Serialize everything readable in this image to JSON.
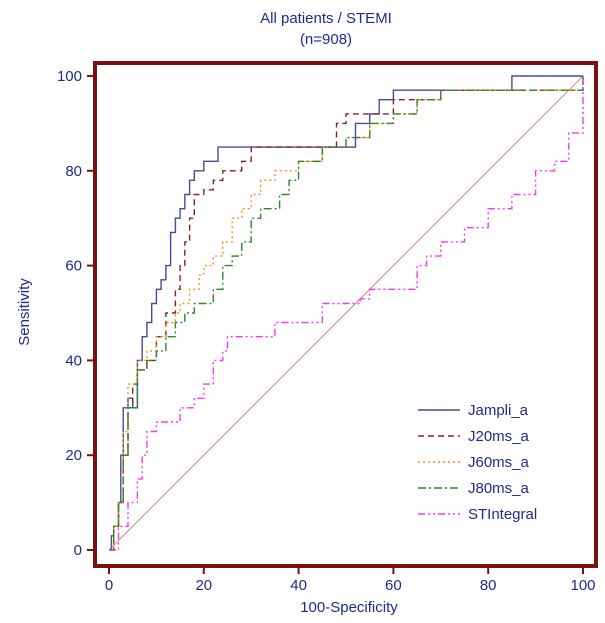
{
  "chart_data": {
    "type": "line",
    "title": "All patients / STEMI",
    "subtitle": "(n=908)",
    "xlabel": "100-Specificity",
    "ylabel": "Sensitivity",
    "xlim": [
      0,
      100
    ],
    "ylim": [
      0,
      100
    ],
    "xticks": [
      "0",
      "20",
      "40",
      "60",
      "80",
      "100"
    ],
    "yticks": [
      "0",
      "20",
      "40",
      "60",
      "80",
      "100"
    ],
    "legend_position": "bottom-right",
    "frame_color": "#7b1010",
    "axis_text_color": "#1f2a8c",
    "diagonal": {
      "x": [
        0,
        100
      ],
      "y": [
        0,
        100
      ],
      "color": "#c07070"
    },
    "series": [
      {
        "name": "Jampli_a",
        "color": "#4a4a9a",
        "dash": "solid",
        "x": [
          0,
          0.5,
          1,
          2,
          2.5,
          3,
          4,
          5,
          6,
          7,
          8,
          9,
          10,
          11,
          12,
          13,
          14,
          15,
          16,
          17,
          18,
          19,
          20,
          23,
          25,
          50,
          52,
          55,
          57,
          60,
          62,
          85,
          100
        ],
        "y": [
          0,
          3,
          5,
          10,
          20,
          30,
          32,
          30,
          40,
          45,
          48,
          52,
          55,
          57,
          60,
          67,
          70,
          72,
          75,
          78,
          80,
          80,
          82,
          85,
          85,
          85,
          90,
          92,
          95,
          97,
          97,
          100,
          100
        ]
      },
      {
        "name": "J20ms_a",
        "color": "#8b2020",
        "dash": "6,4",
        "x": [
          0,
          1,
          2,
          3,
          4,
          5,
          6,
          8,
          10,
          12,
          14,
          15,
          16,
          17,
          18,
          20,
          22,
          24,
          26,
          28,
          30,
          35,
          40,
          45,
          48,
          50,
          52,
          55,
          60,
          70,
          80,
          100
        ],
        "y": [
          0,
          5,
          10,
          20,
          30,
          35,
          38,
          40,
          45,
          50,
          55,
          60,
          65,
          70,
          75,
          76,
          78,
          80,
          80,
          82,
          85,
          85,
          85,
          85,
          90,
          92,
          92,
          92,
          95,
          97,
          97,
          100
        ]
      },
      {
        "name": "J60ms_a",
        "color": "#ff8c1a",
        "dash": "2,3",
        "x": [
          0,
          1,
          2,
          3,
          4,
          6,
          8,
          10,
          12,
          14,
          15,
          17,
          19,
          20,
          22,
          24,
          26,
          28,
          30,
          32,
          35,
          40,
          45,
          50,
          55,
          60,
          65,
          70,
          80,
          100
        ],
        "y": [
          0,
          5,
          10,
          25,
          35,
          40,
          42,
          45,
          48,
          50,
          52,
          55,
          58,
          60,
          62,
          65,
          70,
          72,
          75,
          78,
          80,
          82,
          85,
          87,
          90,
          92,
          95,
          97,
          97,
          100
        ]
      },
      {
        "name": "J80ms_a",
        "color": "#2a8a2a",
        "dash": "8,3,2,3",
        "x": [
          0,
          1,
          2,
          3,
          4,
          6,
          8,
          10,
          12,
          14,
          16,
          18,
          20,
          22,
          24,
          26,
          28,
          30,
          32,
          34,
          36,
          38,
          40,
          45,
          50,
          55,
          60,
          65,
          70,
          80,
          100
        ],
        "y": [
          0,
          5,
          10,
          20,
          30,
          38,
          40,
          42,
          45,
          48,
          50,
          52,
          52,
          55,
          60,
          62,
          65,
          70,
          72,
          72,
          75,
          78,
          82,
          85,
          87,
          90,
          92,
          95,
          97,
          97,
          100
        ]
      },
      {
        "name": "STIntegral",
        "color": "#ff33ff",
        "dash": "7,3,2,3,2,3",
        "x": [
          0,
          2,
          4,
          6,
          7,
          8,
          10,
          12,
          15,
          18,
          20,
          22,
          24,
          25,
          35,
          45,
          53,
          55,
          57,
          60,
          65,
          67,
          70,
          75,
          80,
          85,
          89,
          90,
          94,
          97,
          100
        ],
        "y": [
          0,
          5,
          10,
          15,
          20,
          25,
          27,
          27,
          30,
          32,
          35,
          40,
          42,
          45,
          48,
          52,
          53,
          55,
          55,
          55,
          60,
          62,
          65,
          68,
          72,
          75,
          75,
          80,
          82,
          88,
          100
        ]
      }
    ]
  }
}
